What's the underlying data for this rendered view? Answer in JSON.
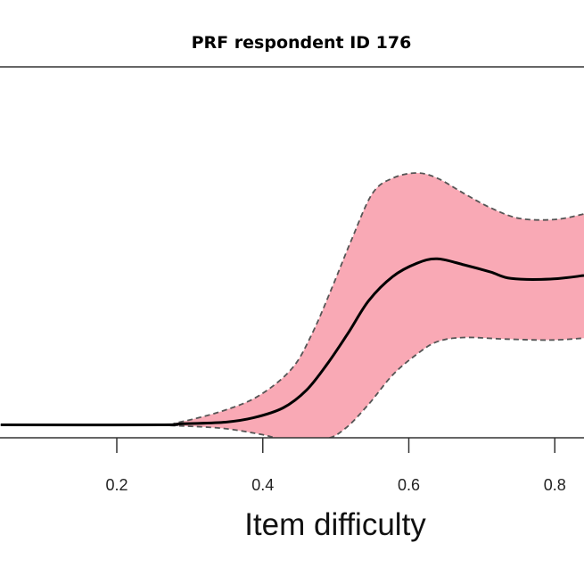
{
  "chart_data": {
    "type": "line",
    "title": "PRF respondent ID 176",
    "xlabel": "Item difficulty",
    "ylabel": "",
    "xlim": [
      0.04,
      0.84
    ],
    "ylim": [
      -0.04,
      1.11
    ],
    "x_ticks": [
      0.2,
      0.4,
      0.6,
      0.8
    ],
    "x_tick_labels": [
      "0.2",
      "0.4",
      "0.6",
      "0.8"
    ],
    "grid": false,
    "colors": {
      "band": "#F9A9B5",
      "line": "#000000",
      "band_edge": "#555555"
    },
    "series": [
      {
        "role": "estimate",
        "style": "solid",
        "x": [
          0.041,
          0.261,
          0.285,
          0.346,
          0.387,
          0.428,
          0.46,
          0.489,
          0.517,
          0.545,
          0.578,
          0.611,
          0.639,
          0.676,
          0.712,
          0.74,
          0.794,
          0.84
        ],
        "y": [
          0,
          0,
          0.003,
          0.008,
          0.022,
          0.053,
          0.108,
          0.191,
          0.285,
          0.385,
          0.46,
          0.501,
          0.515,
          0.496,
          0.474,
          0.454,
          0.452,
          0.463
        ]
      },
      {
        "role": "upper-bound",
        "style": "dashed",
        "x": [
          0.041,
          0.249,
          0.285,
          0.346,
          0.395,
          0.44,
          0.468,
          0.496,
          0.521,
          0.55,
          0.578,
          0.611,
          0.639,
          0.676,
          0.712,
          0.752,
          0.801,
          0.84
        ],
        "y": [
          0,
          0,
          0.008,
          0.044,
          0.091,
          0.175,
          0.285,
          0.432,
          0.571,
          0.717,
          0.765,
          0.781,
          0.765,
          0.717,
          0.673,
          0.64,
          0.637,
          0.654
        ]
      },
      {
        "role": "lower-bound",
        "style": "dashed",
        "x": [
          0.041,
          0.224,
          0.285,
          0.346,
          0.399,
          0.428,
          0.484,
          0.513,
          0.545,
          0.578,
          0.611,
          0.639,
          0.676,
          0.733,
          0.794,
          0.84
        ],
        "y": [
          0,
          0,
          -0.003,
          -0.011,
          -0.03,
          -0.044,
          -0.044,
          -0.011,
          0.064,
          0.155,
          0.219,
          0.258,
          0.271,
          0.266,
          0.263,
          0.269
        ]
      }
    ]
  }
}
